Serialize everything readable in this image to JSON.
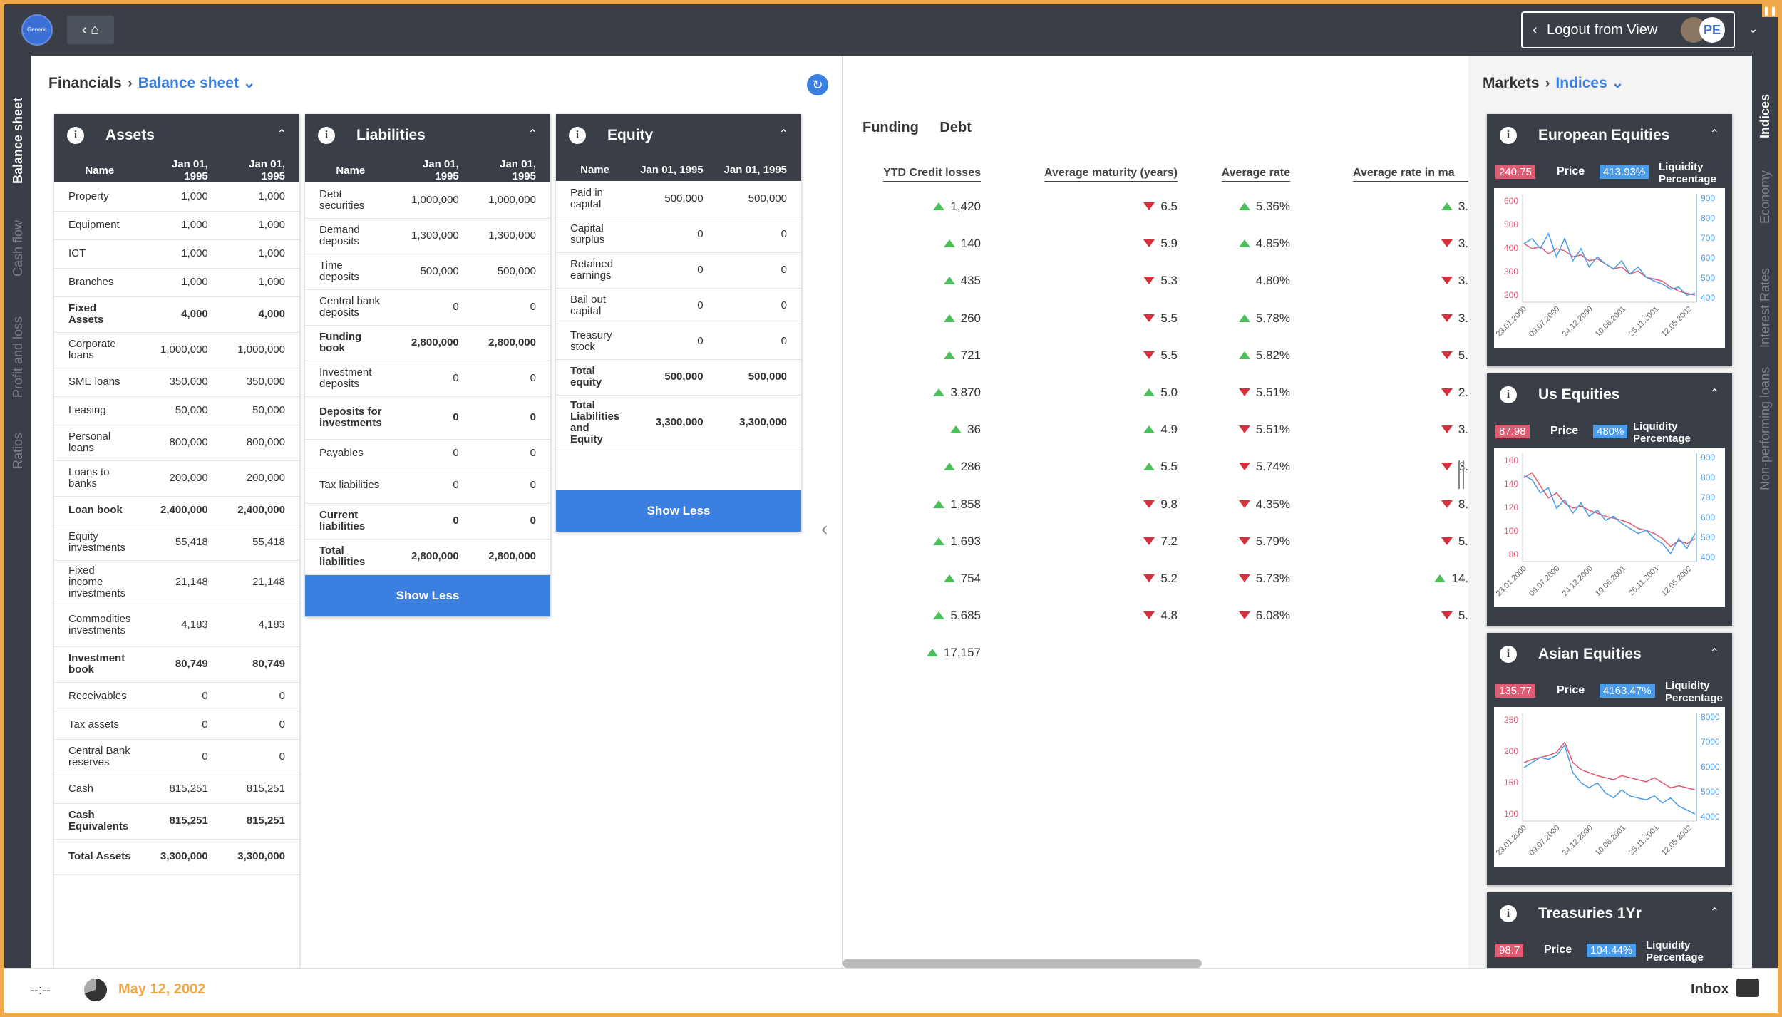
{
  "topbar": {
    "logo_text": "Generic Ltd",
    "logout_label": "Logout from View",
    "avatar_initials": "PE"
  },
  "left_tabs": [
    "Balance sheet",
    "Cash flow",
    "Profit and loss",
    "Ratios"
  ],
  "right_tabs": [
    "Indices",
    "Economy",
    "Interest Rates",
    "Non-performing loans"
  ],
  "breadcrumb_left": {
    "root": "Financials",
    "current": "Balance sheet"
  },
  "breadcrumb_right": {
    "root": "Markets",
    "current": "Indices"
  },
  "columns": {
    "name": "Name",
    "col1": "Jan 01, 1995",
    "col2": "Jan 01, 1995"
  },
  "show_less": "Show Less",
  "assets": {
    "title": "Assets",
    "rows": [
      {
        "name": "Property",
        "v1": "1,000",
        "v2": "1,000",
        "bold": false
      },
      {
        "name": "Equipment",
        "v1": "1,000",
        "v2": "1,000",
        "bold": false
      },
      {
        "name": "ICT",
        "v1": "1,000",
        "v2": "1,000",
        "bold": false
      },
      {
        "name": "Branches",
        "v1": "1,000",
        "v2": "1,000",
        "bold": false
      },
      {
        "name": "Fixed Assets",
        "v1": "4,000",
        "v2": "4,000",
        "bold": true
      },
      {
        "name": "Corporate loans",
        "v1": "1,000,000",
        "v2": "1,000,000",
        "bold": false
      },
      {
        "name": "SME loans",
        "v1": "350,000",
        "v2": "350,000",
        "bold": false
      },
      {
        "name": "Leasing",
        "v1": "50,000",
        "v2": "50,000",
        "bold": false
      },
      {
        "name": "Personal loans",
        "v1": "800,000",
        "v2": "800,000",
        "bold": false
      },
      {
        "name": "Loans to banks",
        "v1": "200,000",
        "v2": "200,000",
        "bold": false
      },
      {
        "name": "Loan book",
        "v1": "2,400,000",
        "v2": "2,400,000",
        "bold": true
      },
      {
        "name": "Equity investments",
        "v1": "55,418",
        "v2": "55,418",
        "bold": false
      },
      {
        "name": "Fixed income investments",
        "v1": "21,148",
        "v2": "21,148",
        "bold": false
      },
      {
        "name": "Commodities investments",
        "v1": "4,183",
        "v2": "4,183",
        "bold": false
      },
      {
        "name": "Investment book",
        "v1": "80,749",
        "v2": "80,749",
        "bold": true
      },
      {
        "name": "Receivables",
        "v1": "0",
        "v2": "0",
        "bold": false
      },
      {
        "name": "Tax assets",
        "v1": "0",
        "v2": "0",
        "bold": false
      },
      {
        "name": "Central Bank reserves",
        "v1": "0",
        "v2": "0",
        "bold": false
      },
      {
        "name": "Cash",
        "v1": "815,251",
        "v2": "815,251",
        "bold": false
      },
      {
        "name": "Cash Equivalents",
        "v1": "815,251",
        "v2": "815,251",
        "bold": true
      },
      {
        "name": "Total Assets",
        "v1": "3,300,000",
        "v2": "3,300,000",
        "bold": true
      }
    ]
  },
  "liabilities": {
    "title": "Liabilities",
    "rows": [
      {
        "name": "Debt securities",
        "v1": "1,000,000",
        "v2": "1,000,000",
        "bold": false
      },
      {
        "name": "Demand deposits",
        "v1": "1,300,000",
        "v2": "1,300,000",
        "bold": false
      },
      {
        "name": "Time deposits",
        "v1": "500,000",
        "v2": "500,000",
        "bold": false
      },
      {
        "name": "Central bank deposits",
        "v1": "0",
        "v2": "0",
        "bold": false
      },
      {
        "name": "Funding book",
        "v1": "2,800,000",
        "v2": "2,800,000",
        "bold": true
      },
      {
        "name": "Investment deposits",
        "v1": "0",
        "v2": "0",
        "bold": false
      },
      {
        "name": "Deposits for investments",
        "v1": "0",
        "v2": "0",
        "bold": true
      },
      {
        "name": "Payables",
        "v1": "0",
        "v2": "0",
        "bold": false
      },
      {
        "name": "Tax liabilities",
        "v1": "0",
        "v2": "0",
        "bold": false
      },
      {
        "name": "Current liabilities",
        "v1": "0",
        "v2": "0",
        "bold": true
      },
      {
        "name": "Total liabilities",
        "v1": "2,800,000",
        "v2": "2,800,000",
        "bold": true
      }
    ]
  },
  "equity": {
    "title": "Equity",
    "rows": [
      {
        "name": "Paid in capital",
        "v1": "500,000",
        "v2": "500,000",
        "bold": false
      },
      {
        "name": "Capital surplus",
        "v1": "0",
        "v2": "0",
        "bold": false
      },
      {
        "name": "Retained earnings",
        "v1": "0",
        "v2": "0",
        "bold": false
      },
      {
        "name": "Bail out capital",
        "v1": "0",
        "v2": "0",
        "bold": false
      },
      {
        "name": "Treasury stock",
        "v1": "0",
        "v2": "0",
        "bold": false
      },
      {
        "name": "Total equity",
        "v1": "500,000",
        "v2": "500,000",
        "bold": true
      },
      {
        "name": "Total Liabilities and Equity",
        "v1": "3,300,000",
        "v2": "3,300,000",
        "bold": true
      }
    ]
  },
  "middle": {
    "tabs": [
      "Funding",
      "Debt"
    ],
    "headers": [
      "YTD Credit losses",
      "Average maturity (years)",
      "Average rate",
      "Average rate in ma"
    ],
    "rows": [
      {
        "c1": "1,420",
        "c1t": "up",
        "c2": "6.5",
        "c2t": "down",
        "c3": "5.36%",
        "c3t": "up",
        "c4": "3.",
        "c4t": "up"
      },
      {
        "c1": "140",
        "c1t": "up",
        "c2": "5.9",
        "c2t": "down",
        "c3": "4.85%",
        "c3t": "up",
        "c4": "3.",
        "c4t": "down"
      },
      {
        "c1": "435",
        "c1t": "up",
        "c2": "5.3",
        "c2t": "down",
        "c3": "4.80%",
        "c3t": "none",
        "c4": "3.",
        "c4t": "down"
      },
      {
        "c1": "260",
        "c1t": "up",
        "c2": "5.5",
        "c2t": "down",
        "c3": "5.78%",
        "c3t": "up",
        "c4": "3.",
        "c4t": "down"
      },
      {
        "c1": "721",
        "c1t": "up",
        "c2": "5.5",
        "c2t": "down",
        "c3": "5.82%",
        "c3t": "up",
        "c4": "5.",
        "c4t": "down"
      },
      {
        "c1": "3,870",
        "c1t": "up",
        "c2": "5.0",
        "c2t": "up",
        "c3": "5.51%",
        "c3t": "down",
        "c4": "2.",
        "c4t": "down"
      },
      {
        "c1": "36",
        "c1t": "up",
        "c2": "4.9",
        "c2t": "up",
        "c3": "5.51%",
        "c3t": "down",
        "c4": "3.",
        "c4t": "down"
      },
      {
        "c1": "286",
        "c1t": "up",
        "c2": "5.5",
        "c2t": "up",
        "c3": "5.74%",
        "c3t": "down",
        "c4": "3.",
        "c4t": "down"
      },
      {
        "c1": "1,858",
        "c1t": "up",
        "c2": "9.8",
        "c2t": "down",
        "c3": "4.35%",
        "c3t": "down",
        "c4": "8.",
        "c4t": "down"
      },
      {
        "c1": "1,693",
        "c1t": "up",
        "c2": "7.2",
        "c2t": "down",
        "c3": "5.79%",
        "c3t": "down",
        "c4": "5.",
        "c4t": "down"
      },
      {
        "c1": "754",
        "c1t": "up",
        "c2": "5.2",
        "c2t": "down",
        "c3": "5.73%",
        "c3t": "down",
        "c4": "14.",
        "c4t": "up"
      },
      {
        "c1": "5,685",
        "c1t": "up",
        "c2": "4.8",
        "c2t": "down",
        "c3": "6.08%",
        "c3t": "down",
        "c4": "5.",
        "c4t": "down"
      },
      {
        "c1": "17,157",
        "c1t": "up",
        "c2": "",
        "c2t": "none",
        "c3": "",
        "c3t": "none",
        "c4": "",
        "c4t": "none"
      }
    ]
  },
  "market_cards": [
    {
      "title": "European Equities",
      "price_value": "240.75",
      "price_label": "Price",
      "liq_value": "413.93%",
      "liq_label": "Liquidity Percentage",
      "left_ticks": [
        "600",
        "500",
        "400",
        "300",
        "200"
      ],
      "right_ticks": [
        "900",
        "800",
        "700",
        "600",
        "500",
        "400"
      ],
      "x_ticks": [
        "23.01.2000",
        "09.07.2000",
        "24.12.2000",
        "10.06.2001",
        "25.11.2001",
        "12.05.2002"
      ],
      "red": [
        0.55,
        0.5,
        0.52,
        0.45,
        0.5,
        0.48,
        0.42,
        0.44,
        0.38,
        0.4,
        0.35,
        0.3,
        0.32,
        0.25,
        0.28,
        0.22,
        0.2,
        0.18,
        0.12,
        0.08,
        0.06,
        0.04
      ],
      "blue": [
        0.55,
        0.6,
        0.5,
        0.65,
        0.42,
        0.6,
        0.38,
        0.5,
        0.32,
        0.42,
        0.35,
        0.3,
        0.38,
        0.25,
        0.32,
        0.22,
        0.18,
        0.15,
        0.1,
        0.12,
        0.04,
        0.06
      ]
    },
    {
      "title": "Us Equities",
      "price_value": "87.98",
      "price_label": "Price",
      "liq_value": "480%",
      "liq_label": "Liquidity Percentage",
      "left_ticks": [
        "160",
        "140",
        "120",
        "100",
        "80"
      ],
      "right_ticks": [
        "900",
        "800",
        "700",
        "600",
        "500",
        "400"
      ],
      "x_ticks": [
        "23.01.2000",
        "09.07.2000",
        "24.12.2000",
        "10.06.2001",
        "25.11.2001",
        "12.05.2002"
      ],
      "red": [
        0.8,
        0.85,
        0.72,
        0.6,
        0.65,
        0.55,
        0.5,
        0.52,
        0.48,
        0.45,
        0.42,
        0.4,
        0.38,
        0.35,
        0.3,
        0.28,
        0.25,
        0.2,
        0.12,
        0.18,
        0.15,
        0.2
      ],
      "blue": [
        0.82,
        0.78,
        0.65,
        0.7,
        0.5,
        0.58,
        0.45,
        0.55,
        0.42,
        0.48,
        0.38,
        0.42,
        0.35,
        0.3,
        0.25,
        0.28,
        0.2,
        0.15,
        0.05,
        0.2,
        0.1,
        0.25
      ]
    },
    {
      "title": "Asian Equities",
      "price_value": "135.77",
      "price_label": "Price",
      "liq_value": "4163.47%",
      "liq_label": "Liquidity Percentage",
      "left_ticks": [
        "250",
        "200",
        "150",
        "100"
      ],
      "right_ticks": [
        "8000",
        "7000",
        "6000",
        "5000",
        "4000"
      ],
      "x_ticks": [
        "23.01.2000",
        "09.07.2000",
        "24.12.2000",
        "10.06.2001",
        "25.11.2001",
        "12.05.2002"
      ],
      "red": [
        0.55,
        0.58,
        0.6,
        0.62,
        0.65,
        0.75,
        0.55,
        0.48,
        0.45,
        0.42,
        0.4,
        0.38,
        0.42,
        0.4,
        0.38,
        0.36,
        0.4,
        0.35,
        0.3,
        0.32,
        0.3,
        0.28
      ],
      "blue": [
        0.5,
        0.55,
        0.6,
        0.58,
        0.62,
        0.72,
        0.45,
        0.35,
        0.3,
        0.35,
        0.25,
        0.2,
        0.28,
        0.22,
        0.2,
        0.18,
        0.22,
        0.15,
        0.2,
        0.12,
        0.08,
        0.04
      ]
    },
    {
      "title": "Treasuries 1Yr",
      "price_value": "98.7",
      "price_label": "Price",
      "liq_value": "104.44%",
      "liq_label": "Liquidity Percentage",
      "left_ticks": [],
      "right_ticks": [],
      "x_ticks": [],
      "red": [],
      "blue": []
    }
  ],
  "statusbar": {
    "clock": "--:--",
    "date": "May 12, 2002",
    "inbox": "Inbox"
  },
  "colors": {
    "accent": "#3b7fe0",
    "dark": "#3a3f47",
    "frame": "#f0a94a",
    "up": "#4cbf5a",
    "down": "#d4313d",
    "red_series": "#e05a72",
    "blue_series": "#4a9bea"
  }
}
